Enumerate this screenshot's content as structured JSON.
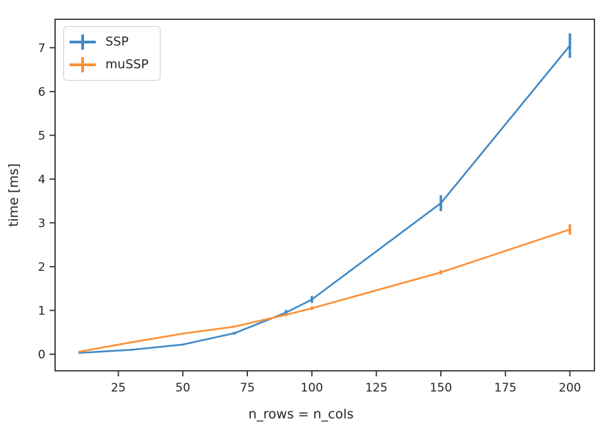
{
  "chart_data": {
    "type": "line",
    "title": "",
    "xlabel": "n_rows = n_cols",
    "ylabel": "time [ms]",
    "x": [
      10,
      30,
      50,
      70,
      90,
      100,
      150,
      200
    ],
    "series": [
      {
        "name": "SSP",
        "color": "#4189c7",
        "values": [
          0.03,
          0.1,
          0.22,
          0.48,
          0.95,
          1.25,
          3.45,
          7.05
        ],
        "errors": [
          0.02,
          0.02,
          0.02,
          0.03,
          0.06,
          0.08,
          0.18,
          0.28
        ]
      },
      {
        "name": "muSSP",
        "color": "#fb9136",
        "values": [
          0.06,
          0.27,
          0.47,
          0.63,
          0.9,
          1.05,
          1.87,
          2.85
        ],
        "errors": [
          0.02,
          0.02,
          0.02,
          0.02,
          0.03,
          0.04,
          0.05,
          0.12
        ]
      }
    ],
    "xlim": [
      0.5,
      209.5
    ],
    "ylim": [
      -0.38,
      7.65
    ],
    "xticks": [
      25,
      50,
      75,
      100,
      125,
      150,
      175,
      200
    ],
    "yticks": [
      0,
      1,
      2,
      3,
      4,
      5,
      6,
      7
    ],
    "grid": false,
    "legend_position": "upper-left",
    "axis_color": "#333333",
    "tick_label_color": "#262626",
    "tick_font_size": 17
  }
}
